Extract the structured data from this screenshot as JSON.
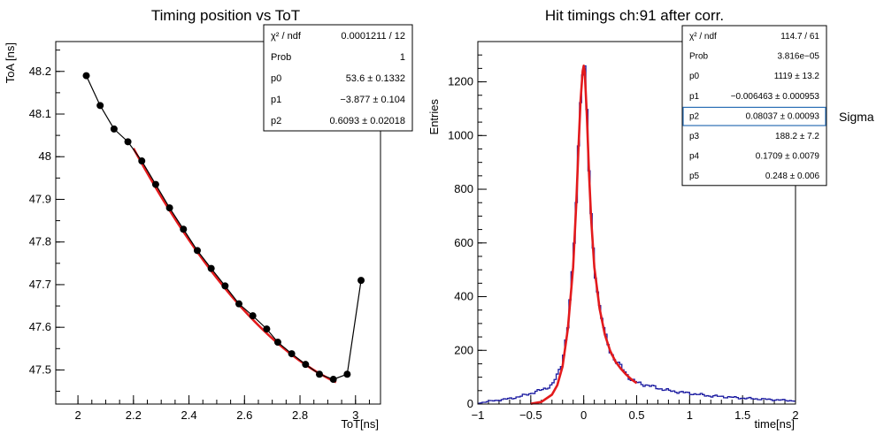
{
  "chart_data": [
    {
      "type": "scatter",
      "title": "Timing position vs ToT",
      "xlabel": "ToT[ns]",
      "ylabel": "ToA [ns]",
      "xlim": [
        1.92,
        3.09
      ],
      "ylim": [
        47.42,
        48.27
      ],
      "xticks": [
        "2",
        "2.2",
        "2.4",
        "2.6",
        "2.8",
        "3"
      ],
      "yticks": [
        "47.5",
        "47.6",
        "47.7",
        "47.8",
        "47.9",
        "48",
        "48.1",
        "48.2"
      ],
      "series": [
        {
          "points": [
            [
              2.03,
              48.19
            ],
            [
              2.08,
              48.12
            ],
            [
              2.13,
              48.065
            ],
            [
              2.18,
              48.035
            ],
            [
              2.23,
              47.99
            ],
            [
              2.28,
              47.935
            ],
            [
              2.33,
              47.88
            ],
            [
              2.38,
              47.83
            ],
            [
              2.43,
              47.78
            ],
            [
              2.48,
              47.738
            ],
            [
              2.53,
              47.697
            ],
            [
              2.58,
              47.655
            ],
            [
              2.63,
              47.627
            ],
            [
              2.68,
              47.596
            ],
            [
              2.72,
              47.565
            ],
            [
              2.77,
              47.538
            ],
            [
              2.82,
              47.513
            ],
            [
              2.87,
              47.49
            ],
            [
              2.92,
              47.478
            ],
            [
              2.97,
              47.49
            ],
            [
              3.02,
              47.71
            ]
          ]
        }
      ],
      "fit": {
        "x_range": [
          2.2,
          2.93
        ],
        "p0": 53.6,
        "p1": -3.877,
        "p2": 0.6093
      },
      "stats": [
        {
          "label": "χ² / ndf",
          "value": "0.0001211 / 12"
        },
        {
          "label": "Prob",
          "value": "1"
        },
        {
          "label": "p0",
          "value": "53.6 ± 0.1332"
        },
        {
          "label": "p1",
          "value": "−3.877 ± 0.104"
        },
        {
          "label": "p2",
          "value": "0.6093 ± 0.02018"
        }
      ],
      "colors": {
        "markers": "#000000",
        "fit": "#e31a1c"
      }
    },
    {
      "type": "line",
      "title": "Hit timings ch:91 after corr.",
      "xlabel": "time[ns]",
      "ylabel": "Entries",
      "xlim": [
        -1,
        2
      ],
      "ylim": [
        0,
        1350
      ],
      "xticks": [
        "−1",
        "−0.5",
        "0",
        "0.5",
        "1",
        "1.5",
        "2"
      ],
      "yticks": [
        "0",
        "200",
        "400",
        "600",
        "800",
        "1000",
        "1200"
      ],
      "histogram": {
        "bin_width": 0.02,
        "x": [
          -1,
          -0.9,
          -0.8,
          -0.7,
          -0.6,
          -0.5,
          -0.4,
          -0.3,
          -0.25,
          -0.2,
          -0.15,
          -0.1,
          -0.07,
          -0.05,
          -0.03,
          -0.01,
          0,
          0.01,
          0.03,
          0.05,
          0.07,
          0.1,
          0.15,
          0.2,
          0.25,
          0.3,
          0.35,
          0.4,
          0.45,
          0.5,
          0.6,
          0.7,
          0.8,
          0.9,
          1.0,
          1.1,
          1.2,
          1.3,
          1.4,
          1.5,
          1.6,
          1.7,
          1.8,
          1.9,
          2.0
        ],
        "y": [
          3,
          10,
          15,
          20,
          28,
          40,
          52,
          70,
          105,
          160,
          290,
          520,
          760,
          960,
          1140,
          1245,
          1265,
          1240,
          1080,
          870,
          700,
          520,
          360,
          260,
          200,
          160,
          140,
          115,
          90,
          80,
          70,
          60,
          50,
          45,
          40,
          35,
          30,
          28,
          25,
          22,
          20,
          18,
          16,
          14,
          12
        ]
      },
      "fit": {
        "x": [
          -0.5,
          -0.4,
          -0.3,
          -0.25,
          -0.2,
          -0.15,
          -0.1,
          -0.07,
          -0.05,
          -0.03,
          -0.01,
          0,
          0.01,
          0.03,
          0.05,
          0.07,
          0.1,
          0.15,
          0.2,
          0.25,
          0.3,
          0.35,
          0.4,
          0.45,
          0.5
        ],
        "y": [
          1,
          8,
          35,
          70,
          140,
          280,
          510,
          750,
          950,
          1130,
          1240,
          1260,
          1235,
          1070,
          860,
          690,
          510,
          355,
          258,
          198,
          158,
          132,
          110,
          92,
          78
        ]
      },
      "stats": [
        {
          "label": "χ² / ndf",
          "value": "114.7 / 61"
        },
        {
          "label": "Prob",
          "value": "3.816e−05"
        },
        {
          "label": "p0",
          "value": "1119 ± 13.2"
        },
        {
          "label": "p1",
          "value": "−0.006463 ± 0.000953"
        },
        {
          "label": "p2",
          "value": "0.08037 ± 0.00093"
        },
        {
          "label": "p3",
          "value": "188.2 ± 7.2"
        },
        {
          "label": "p4",
          "value": "0.1709 ± 0.0079"
        },
        {
          "label": "p5",
          "value": "0.248 ± 0.006"
        }
      ],
      "highlight_row": 4,
      "annotation": "Sigma",
      "colors": {
        "histogram": "#1a1aa0",
        "fit": "#e31a1c",
        "highlight": "#2b6fb5"
      }
    }
  ]
}
